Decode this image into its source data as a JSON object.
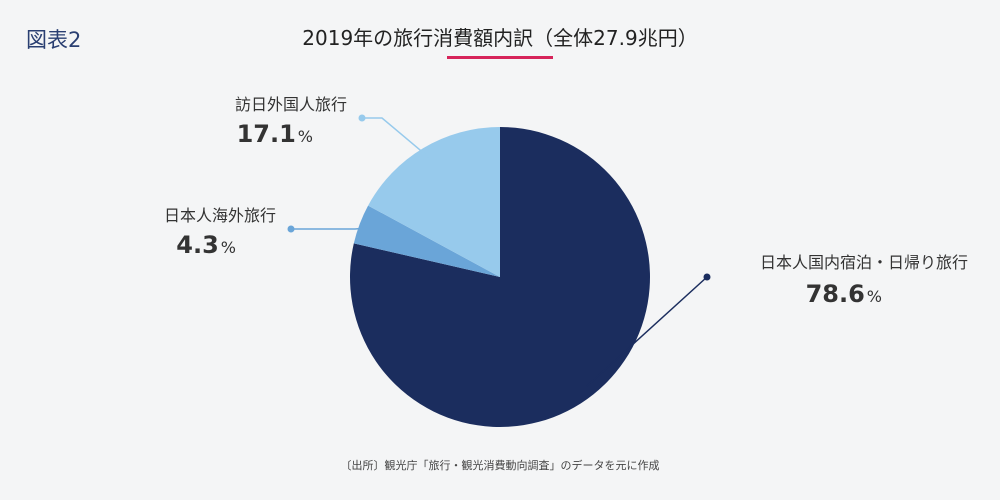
{
  "figure_label": "図表2",
  "source": "〔出所〕観光庁「旅行・観光消費動向調査」のデータを元に作成",
  "colors": {
    "title_underline": "#d6245a",
    "figure_label": "#2a3f72"
  },
  "chart_data": {
    "type": "pie",
    "title": "2019年の旅行消費額内訳（全体27.9兆円）",
    "unit": "%",
    "slices": [
      {
        "label": "日本人国内宿泊・日帰り旅行",
        "value": 78.6,
        "value_text": "78.6",
        "color": "#1b2d5e"
      },
      {
        "label": "日本人海外旅行",
        "value": 4.3,
        "value_text": "4.3",
        "color": "#6aa5d8"
      },
      {
        "label": "訪日外国人旅行",
        "value": 17.1,
        "value_text": "17.1",
        "color": "#97caec"
      }
    ]
  }
}
